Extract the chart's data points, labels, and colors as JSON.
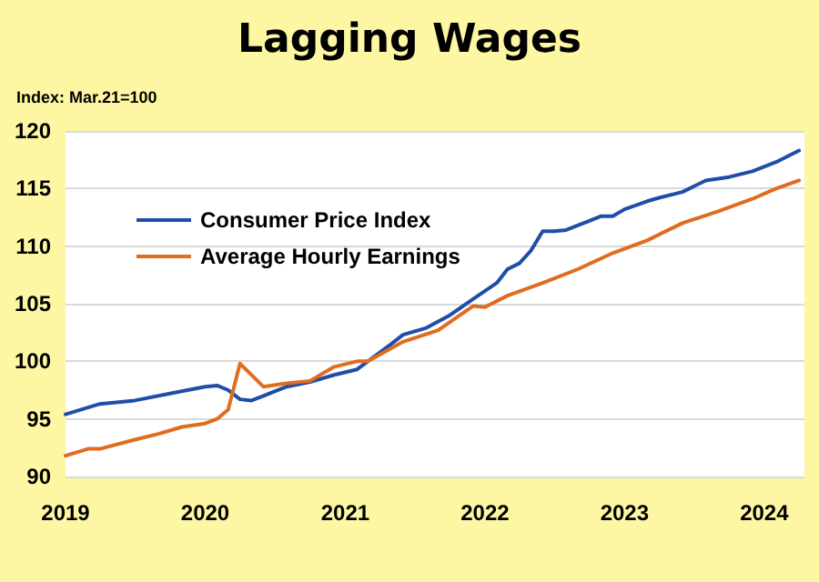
{
  "chart_data": {
    "type": "line",
    "title": "Lagging Wages",
    "subtitle": "Index: Mar.21=100",
    "series": [
      {
        "name": "Consumer Price Index",
        "color": "#1f4ea8",
        "x": [
          "2019-01",
          "2019-04",
          "2019-07",
          "2019-10",
          "2020-01",
          "2020-02",
          "2020-03",
          "2020-04",
          "2020-05",
          "2020-06",
          "2020-08",
          "2020-10",
          "2020-12",
          "2021-02",
          "2021-03",
          "2021-05",
          "2021-06",
          "2021-08",
          "2021-10",
          "2021-12",
          "2022-02",
          "2022-03",
          "2022-04",
          "2022-05",
          "2022-06",
          "2022-07",
          "2022-08",
          "2022-10",
          "2022-11",
          "2022-12",
          "2023-01",
          "2023-03",
          "2023-04",
          "2023-06",
          "2023-08",
          "2023-10",
          "2023-12",
          "2024-02",
          "2024-04"
        ],
        "values": [
          95.4,
          96.3,
          96.6,
          97.2,
          97.8,
          97.9,
          97.5,
          96.7,
          96.6,
          97.0,
          97.8,
          98.2,
          98.8,
          99.3,
          100,
          101.5,
          102.3,
          102.9,
          104.0,
          105.4,
          106.8,
          108.0,
          108.5,
          109.6,
          111.3,
          111.3,
          111.4,
          112.2,
          112.6,
          112.6,
          113.2,
          113.9,
          114.2,
          114.7,
          115.7,
          116.0,
          116.5,
          117.3,
          118.3
        ]
      },
      {
        "name": "Average Hourly Earnings",
        "color": "#e06c1e",
        "x": [
          "2019-01",
          "2019-03",
          "2019-04",
          "2019-07",
          "2019-09",
          "2019-11",
          "2020-01",
          "2020-02",
          "2020-03",
          "2020-04",
          "2020-06",
          "2020-08",
          "2020-10",
          "2020-12",
          "2021-02",
          "2021-03",
          "2021-06",
          "2021-09",
          "2021-12",
          "2022-01",
          "2022-03",
          "2022-06",
          "2022-09",
          "2022-12",
          "2023-03",
          "2023-06",
          "2023-09",
          "2023-12",
          "2024-02",
          "2024-04"
        ],
        "values": [
          91.8,
          92.4,
          92.4,
          93.2,
          93.7,
          94.3,
          94.6,
          95.0,
          95.8,
          99.8,
          97.8,
          98.1,
          98.3,
          99.5,
          100,
          100,
          101.7,
          102.7,
          104.8,
          104.7,
          105.7,
          106.8,
          108.0,
          109.4,
          110.5,
          112.0,
          113.0,
          114.1,
          115.0,
          115.7
        ]
      }
    ],
    "xlim": [
      "2019-01-01",
      "2024-04-15"
    ],
    "xticks": [
      {
        "value": "2019-01-01",
        "label": "2019"
      },
      {
        "value": "2020-01-01",
        "label": "2020"
      },
      {
        "value": "2021-01-01",
        "label": "2021"
      },
      {
        "value": "2022-01-01",
        "label": "2022"
      },
      {
        "value": "2023-01-01",
        "label": "2023"
      },
      {
        "value": "2024-01-01",
        "label": "2024"
      }
    ],
    "ylim": [
      90,
      120
    ],
    "yticks": [
      90,
      95,
      100,
      105,
      110,
      115,
      120
    ],
    "grid": "y",
    "legend": "left",
    "marker": "none",
    "line_style": "solid"
  }
}
